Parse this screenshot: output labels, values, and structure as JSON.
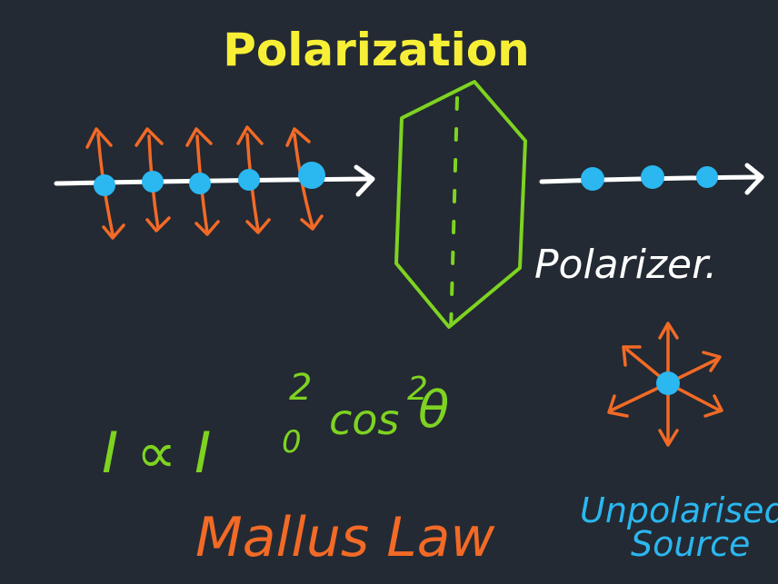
{
  "title": "Polarization",
  "labels": {
    "polarizer": "Polarizer.",
    "law_prefix": "I ∝ I",
    "law_sub": "0",
    "law_sup1": "2",
    "law_cos": "cos",
    "law_sup2": "2",
    "law_theta": "θ",
    "law_name": "Mallus Law",
    "unpolarised_line1": "Unpolarised",
    "unpolarised_line2": "Source"
  },
  "colors": {
    "background": "#232a33",
    "title": "#f7ef36",
    "ray": "#ffffff",
    "dot": "#2bb7f0",
    "vibration": "#f26a26",
    "polarizer": "#7ed321",
    "formula": "#7ed321",
    "law_name": "#f26a26",
    "source_text": "#2bb7f0",
    "polarizer_label": "#ffffff"
  }
}
